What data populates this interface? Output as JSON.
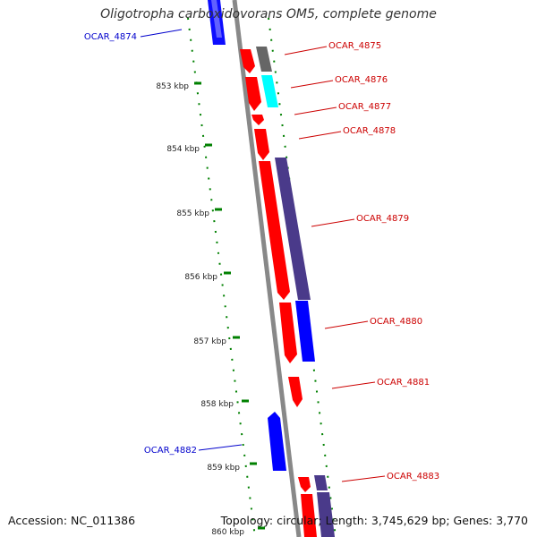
{
  "title": "Oligotropha carboxidovorans OM5, complete genome",
  "footer": {
    "accession": "Accession: NC_011386",
    "stats": "Topology: circular; Length: 3,745,629 bp; Genes: 3,770"
  },
  "colors": {
    "forward_gene": "#ff0000",
    "reverse_gene": "#0000ff",
    "rna": "#00ffff",
    "other": "#666666",
    "overlap": "#4a3a8a",
    "backbone": "#888888",
    "tick": "#008000",
    "forward_label": "#cc0000",
    "reverse_label": "#0000cc"
  },
  "ticks": [
    {
      "label": "853 kbp"
    },
    {
      "label": "854 kbp"
    },
    {
      "label": "855 kbp"
    },
    {
      "label": "856 kbp"
    },
    {
      "label": "857 kbp"
    },
    {
      "label": "858 kbp"
    },
    {
      "label": "859 kbp"
    },
    {
      "label": "860 kbp"
    }
  ],
  "genes": [
    {
      "name": "OCAR_4874",
      "strand": "reverse"
    },
    {
      "name": "OCAR_4875",
      "strand": "forward"
    },
    {
      "name": "OCAR_4876",
      "strand": "forward"
    },
    {
      "name": "OCAR_4877",
      "strand": "forward"
    },
    {
      "name": "OCAR_4878",
      "strand": "forward"
    },
    {
      "name": "OCAR_4879",
      "strand": "forward"
    },
    {
      "name": "OCAR_4880",
      "strand": "forward"
    },
    {
      "name": "OCAR_4881",
      "strand": "forward"
    },
    {
      "name": "OCAR_4882",
      "strand": "reverse"
    },
    {
      "name": "OCAR_4883",
      "strand": "forward"
    }
  ]
}
